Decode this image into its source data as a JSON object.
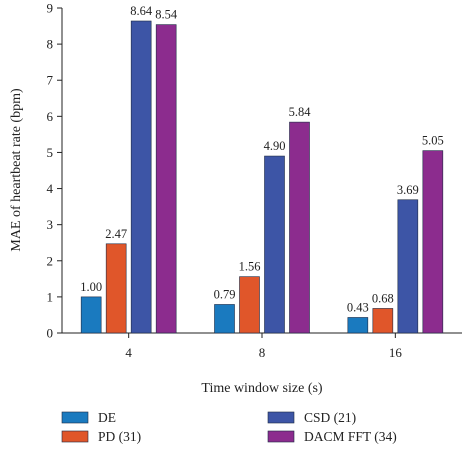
{
  "chart_data": {
    "type": "bar",
    "title": "",
    "xlabel": "Time window size (s)",
    "ylabel": "MAE of heartbeat rate (bpm)",
    "categories": [
      "4",
      "8",
      "16"
    ],
    "ylim": [
      0,
      9
    ],
    "yticks": [
      0,
      1,
      2,
      3,
      4,
      5,
      6,
      7,
      8,
      9
    ],
    "grid": false,
    "legend_position": "bottom",
    "series": [
      {
        "name": "DE",
        "color": "#1a7abf",
        "values": [
          1.0,
          0.79,
          0.43
        ],
        "labels": [
          "1.00",
          "0.79",
          "0.43"
        ]
      },
      {
        "name": "PD (31)",
        "color": "#e0562a",
        "values": [
          2.47,
          1.56,
          0.68
        ],
        "labels": [
          "2.47",
          "1.56",
          "0.68"
        ]
      },
      {
        "name": "CSD (21)",
        "color": "#3d55a6",
        "values": [
          8.64,
          4.9,
          3.69
        ],
        "labels": [
          "8.64",
          "4.90",
          "3.69"
        ]
      },
      {
        "name": "DACM FFT (34)",
        "color": "#8c2c8e",
        "values": [
          8.54,
          5.84,
          5.05
        ],
        "labels": [
          "8.54",
          "5.84",
          "5.05"
        ]
      }
    ]
  }
}
